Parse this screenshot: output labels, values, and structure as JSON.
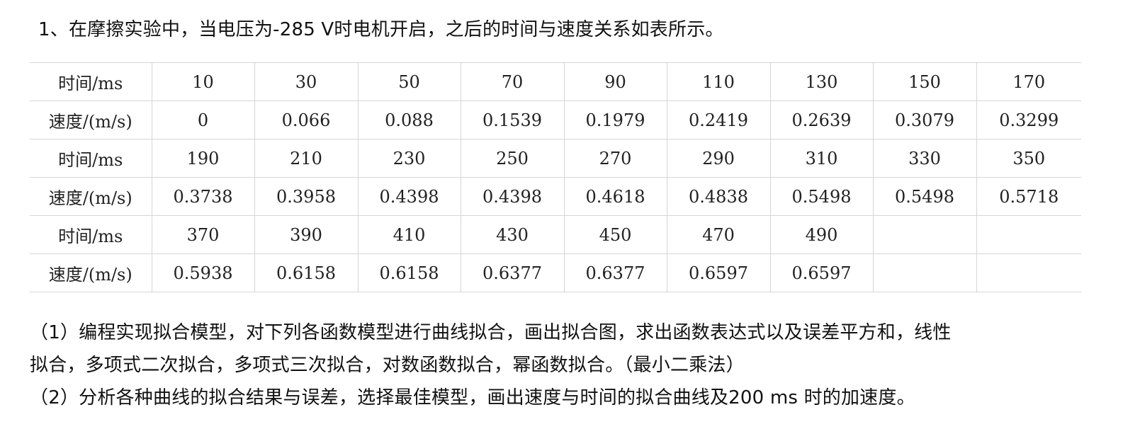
{
  "intro": "1、在摩擦实验中，当电压为-285 V时电机开启，之后的时间与速度关系如表所示。",
  "table": {
    "rows": [
      {
        "label": "时间/ms",
        "cells": [
          "10",
          "30",
          "50",
          "70",
          "90",
          "110",
          "130",
          "150",
          "170"
        ]
      },
      {
        "label": "速度/(m/s)",
        "cells": [
          "0",
          "0.066",
          "0.088",
          "0.1539",
          "0.1979",
          "0.2419",
          "0.2639",
          "0.3079",
          "0.3299"
        ]
      },
      {
        "label": "时间/ms",
        "cells": [
          "190",
          "210",
          "230",
          "250",
          "270",
          "290",
          "310",
          "330",
          "350"
        ]
      },
      {
        "label": "速度/(m/s)",
        "cells": [
          "0.3738",
          "0.3958",
          "0.4398",
          "0.4398",
          "0.4618",
          "0.4838",
          "0.5498",
          "0.5498",
          "0.5718"
        ]
      },
      {
        "label": "时间/ms",
        "cells": [
          "370",
          "390",
          "410",
          "430",
          "450",
          "470",
          "490",
          "",
          ""
        ]
      },
      {
        "label": "速度/(m/s)",
        "cells": [
          "0.5938",
          "0.6158",
          "0.6158",
          "0.6377",
          "0.6377",
          "0.6597",
          "0.6597",
          "",
          ""
        ]
      }
    ]
  },
  "tasks": {
    "task1_line1": "（1）编程实现拟合模型，对下列各函数模型进行曲线拟合，画出拟合图，求出函数表达式以及误差平方和，线性",
    "task1_line2": "拟合，多项式二次拟合，多项式三次拟合，对数函数拟合，幂函数拟合。（最小二乘法）",
    "task2": "（2）分析各种曲线的拟合结果与误差，选择最佳模型，画出速度与时间的拟合曲线及200 ms 时的加速度。"
  }
}
